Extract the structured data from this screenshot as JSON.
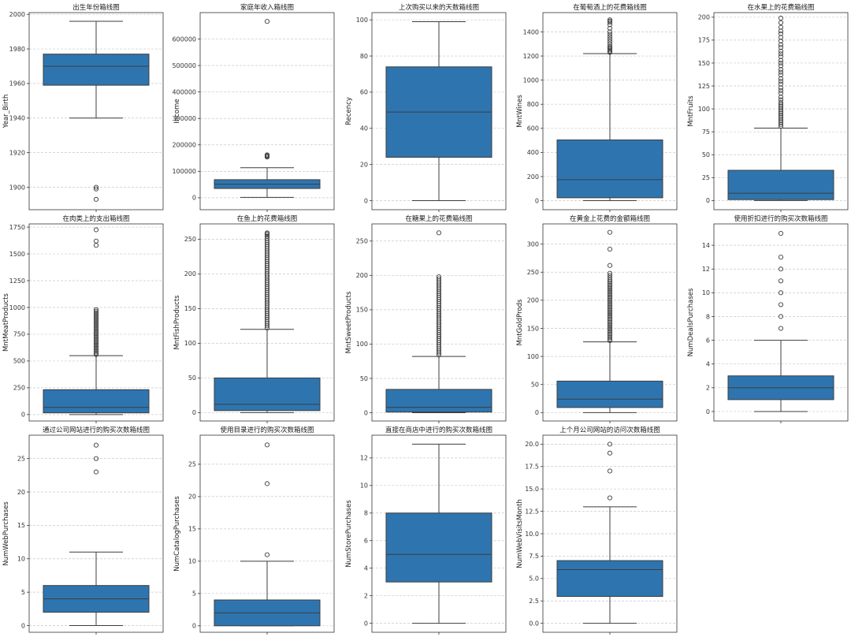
{
  "figure": {
    "colors": {
      "box": "#2e75b0",
      "edge": "#3d3d3d",
      "grid": "#c8c8c8",
      "axis": "#333333"
    }
  },
  "chart_data": [
    {
      "type": "box",
      "title": "出生年份箱线图",
      "ylabel": "Year_Birth",
      "ylim": [
        1887,
        2001
      ],
      "yticks": [
        1900,
        1920,
        1940,
        1960,
        1980,
        2000
      ],
      "ytick_labels": [
        "1900",
        "1920",
        "1940",
        "1960",
        "1980",
        "2000"
      ],
      "whislo": 1940,
      "q1": 1959,
      "median": 1970,
      "q3": 1977,
      "whishi": 1996,
      "fliers": [
        1893,
        1899,
        1900
      ]
    },
    {
      "type": "box",
      "title": "家庭年收入箱线图",
      "ylabel": "Income",
      "ylim": [
        -45000,
        700000
      ],
      "yticks": [
        0,
        100000,
        200000,
        300000,
        400000,
        500000,
        600000
      ],
      "ytick_labels": [
        "0",
        "100000",
        "200000",
        "300000",
        "400000",
        "500000",
        "600000"
      ],
      "whislo": 1730,
      "q1": 35300,
      "median": 51400,
      "q3": 68500,
      "whishi": 113700,
      "fliers": [
        153900,
        156900,
        157200,
        160800,
        162400,
        666666
      ]
    },
    {
      "type": "box",
      "title": "上次购买以来的天数箱线图",
      "ylabel": "Recency",
      "ylim": [
        -5,
        104
      ],
      "yticks": [
        0,
        20,
        40,
        60,
        80,
        100
      ],
      "ytick_labels": [
        "0",
        "20",
        "40",
        "60",
        "80",
        "100"
      ],
      "whislo": 0,
      "q1": 24,
      "median": 49,
      "q3": 74,
      "whishi": 99,
      "fliers": []
    },
    {
      "type": "box",
      "title": "在葡萄酒上的花费箱线图",
      "ylabel": "MntWines",
      "ylim": [
        -75,
        1560
      ],
      "yticks": [
        0,
        200,
        400,
        600,
        800,
        1000,
        1200,
        1400
      ],
      "ytick_labels": [
        "0",
        "200",
        "400",
        "600",
        "800",
        "1000",
        "1200",
        "1400"
      ],
      "whislo": 0,
      "q1": 24,
      "median": 174,
      "q3": 504,
      "whishi": 1220,
      "fliers": [
        1230,
        1240,
        1250,
        1260,
        1270,
        1280,
        1300,
        1320,
        1340,
        1360,
        1380,
        1400,
        1430,
        1460,
        1480,
        1490,
        1500
      ]
    },
    {
      "type": "box",
      "title": "在水果上的花费箱线图",
      "ylabel": "MntFruits",
      "ylim": [
        -10,
        205
      ],
      "yticks": [
        0,
        25,
        50,
        75,
        100,
        125,
        150,
        175,
        200
      ],
      "ytick_labels": [
        "0",
        "25",
        "50",
        "75",
        "100",
        "125",
        "150",
        "175",
        "200"
      ],
      "whislo": 0,
      "q1": 1,
      "median": 8,
      "q3": 33,
      "whishi": 79,
      "fliers": [
        81,
        83,
        85,
        87,
        89,
        91,
        93,
        95,
        97,
        99,
        101,
        103,
        105,
        107,
        110,
        113,
        117,
        120,
        123,
        127,
        130,
        133,
        137,
        140,
        143,
        147,
        150,
        153,
        157,
        160,
        163,
        167,
        170,
        174,
        178,
        182,
        185,
        189,
        194,
        199
      ]
    },
    {
      "type": "box",
      "title": "在肉类上的支出箱线图",
      "ylabel": "MntMeatProducts",
      "ylim": [
        -60,
        1780
      ],
      "yticks": [
        0,
        250,
        500,
        750,
        1000,
        1250,
        1500,
        1750
      ],
      "ytick_labels": [
        "0",
        "250",
        "500",
        "750",
        "1000",
        "1250",
        "1500",
        "1750"
      ],
      "whislo": 0,
      "q1": 16,
      "median": 67,
      "q3": 232,
      "whishi": 550,
      "fliers": [
        560,
        575,
        590,
        605,
        620,
        635,
        650,
        665,
        680,
        695,
        710,
        725,
        740,
        755,
        770,
        785,
        800,
        815,
        830,
        845,
        860,
        875,
        890,
        905,
        920,
        935,
        950,
        965,
        980,
        1580,
        1620,
        1725
      ]
    },
    {
      "type": "box",
      "title": "在鱼上的花费箱线图",
      "ylabel": "MntFishProducts",
      "ylim": [
        -12,
        272
      ],
      "yticks": [
        0,
        50,
        100,
        150,
        200,
        250
      ],
      "ytick_labels": [
        "0",
        "50",
        "100",
        "150",
        "200",
        "250"
      ],
      "whislo": 0,
      "q1": 3,
      "median": 12,
      "q3": 50,
      "whishi": 120,
      "fliers": [
        122,
        125,
        128,
        131,
        134,
        137,
        140,
        143,
        146,
        149,
        152,
        155,
        158,
        161,
        164,
        167,
        170,
        173,
        176,
        179,
        182,
        185,
        188,
        191,
        194,
        197,
        200,
        203,
        206,
        209,
        212,
        215,
        218,
        221,
        224,
        227,
        230,
        233,
        236,
        239,
        242,
        245,
        248,
        251,
        254,
        256,
        258,
        259
      ]
    },
    {
      "type": "box",
      "title": "在糖果上的花费箱线图",
      "ylabel": "MntSweetProducts",
      "ylim": [
        -12,
        275
      ],
      "yticks": [
        0,
        50,
        100,
        150,
        200,
        250
      ],
      "ytick_labels": [
        "0",
        "50",
        "100",
        "150",
        "200",
        "250"
      ],
      "whislo": 0,
      "q1": 1,
      "median": 8,
      "q3": 34,
      "whishi": 82,
      "fliers": [
        84,
        87,
        90,
        93,
        96,
        99,
        102,
        105,
        108,
        111,
        114,
        117,
        120,
        123,
        126,
        129,
        132,
        135,
        138,
        141,
        144,
        147,
        150,
        153,
        156,
        159,
        162,
        165,
        168,
        171,
        174,
        177,
        180,
        183,
        186,
        189,
        192,
        195,
        198,
        262
      ]
    },
    {
      "type": "box",
      "title": "在黄金上花费的金额箱线图",
      "ylabel": "MntGoldProds",
      "ylim": [
        -15,
        336
      ],
      "yticks": [
        0,
        50,
        100,
        150,
        200,
        250,
        300
      ],
      "ytick_labels": [
        "0",
        "50",
        "100",
        "150",
        "200",
        "250",
        "300"
      ],
      "whislo": 0,
      "q1": 9,
      "median": 24,
      "q3": 56,
      "whishi": 126,
      "fliers": [
        128,
        131,
        134,
        137,
        140,
        143,
        146,
        149,
        152,
        155,
        158,
        161,
        164,
        167,
        170,
        173,
        176,
        179,
        182,
        185,
        188,
        191,
        194,
        197,
        200,
        203,
        206,
        209,
        212,
        215,
        218,
        221,
        224,
        227,
        230,
        233,
        236,
        240,
        244,
        248,
        262,
        291,
        321
      ]
    },
    {
      "type": "box",
      "title": "使用折扣进行的购买次数箱线图",
      "ylabel": "NumDealsPurchases",
      "ylim": [
        -0.8,
        15.8
      ],
      "yticks": [
        0,
        2,
        4,
        6,
        8,
        10,
        12,
        14
      ],
      "ytick_labels": [
        "0",
        "2",
        "4",
        "6",
        "8",
        "10",
        "12",
        "14"
      ],
      "whislo": 0,
      "q1": 1,
      "median": 2,
      "q3": 3,
      "whishi": 6,
      "fliers": [
        7,
        8,
        9,
        10,
        11,
        12,
        13,
        15
      ]
    },
    {
      "type": "box",
      "title": "通过公司网站进行的购买次数箱线图",
      "ylabel": "NumWebPurchases",
      "ylim": [
        -1,
        28.5
      ],
      "yticks": [
        0,
        5,
        10,
        15,
        20,
        25
      ],
      "ytick_labels": [
        "0",
        "5",
        "10",
        "15",
        "20",
        "25"
      ],
      "whislo": 0,
      "q1": 2,
      "median": 4,
      "q3": 6,
      "whishi": 11,
      "fliers": [
        23,
        25,
        27
      ]
    },
    {
      "type": "box",
      "title": "使用目录进行的购买次数箱线图",
      "ylabel": "NumCatalogPurchases",
      "ylim": [
        -1,
        29.5
      ],
      "yticks": [
        0,
        5,
        10,
        15,
        20,
        25
      ],
      "ytick_labels": [
        "0",
        "5",
        "10",
        "15",
        "20",
        "25"
      ],
      "whislo": 0,
      "q1": 0,
      "median": 2,
      "q3": 4,
      "whishi": 10,
      "fliers": [
        11,
        22,
        28
      ]
    },
    {
      "type": "box",
      "title": "直接在商店中进行的购买次数箱线图",
      "ylabel": "NumStorePurchases",
      "ylim": [
        -0.65,
        13.65
      ],
      "yticks": [
        0,
        2,
        4,
        6,
        8,
        10,
        12
      ],
      "ytick_labels": [
        "0",
        "2",
        "4",
        "6",
        "8",
        "10",
        "12"
      ],
      "whislo": 0,
      "q1": 3,
      "median": 5,
      "q3": 8,
      "whishi": 13,
      "fliers": []
    },
    {
      "type": "box",
      "title": "上个月公司网站的访问次数箱线图",
      "ylabel": "NumWebVisitsMonth",
      "ylim": [
        -1,
        21
      ],
      "yticks": [
        0,
        2.5,
        5,
        7.5,
        10,
        12.5,
        15,
        17.5,
        20
      ],
      "ytick_labels": [
        "0.0",
        "2.5",
        "5.0",
        "7.5",
        "10.0",
        "12.5",
        "15.0",
        "17.5",
        "20.0"
      ],
      "whislo": 0,
      "q1": 3,
      "median": 6,
      "q3": 7,
      "whishi": 13,
      "fliers": [
        14,
        17,
        19,
        20
      ]
    }
  ]
}
